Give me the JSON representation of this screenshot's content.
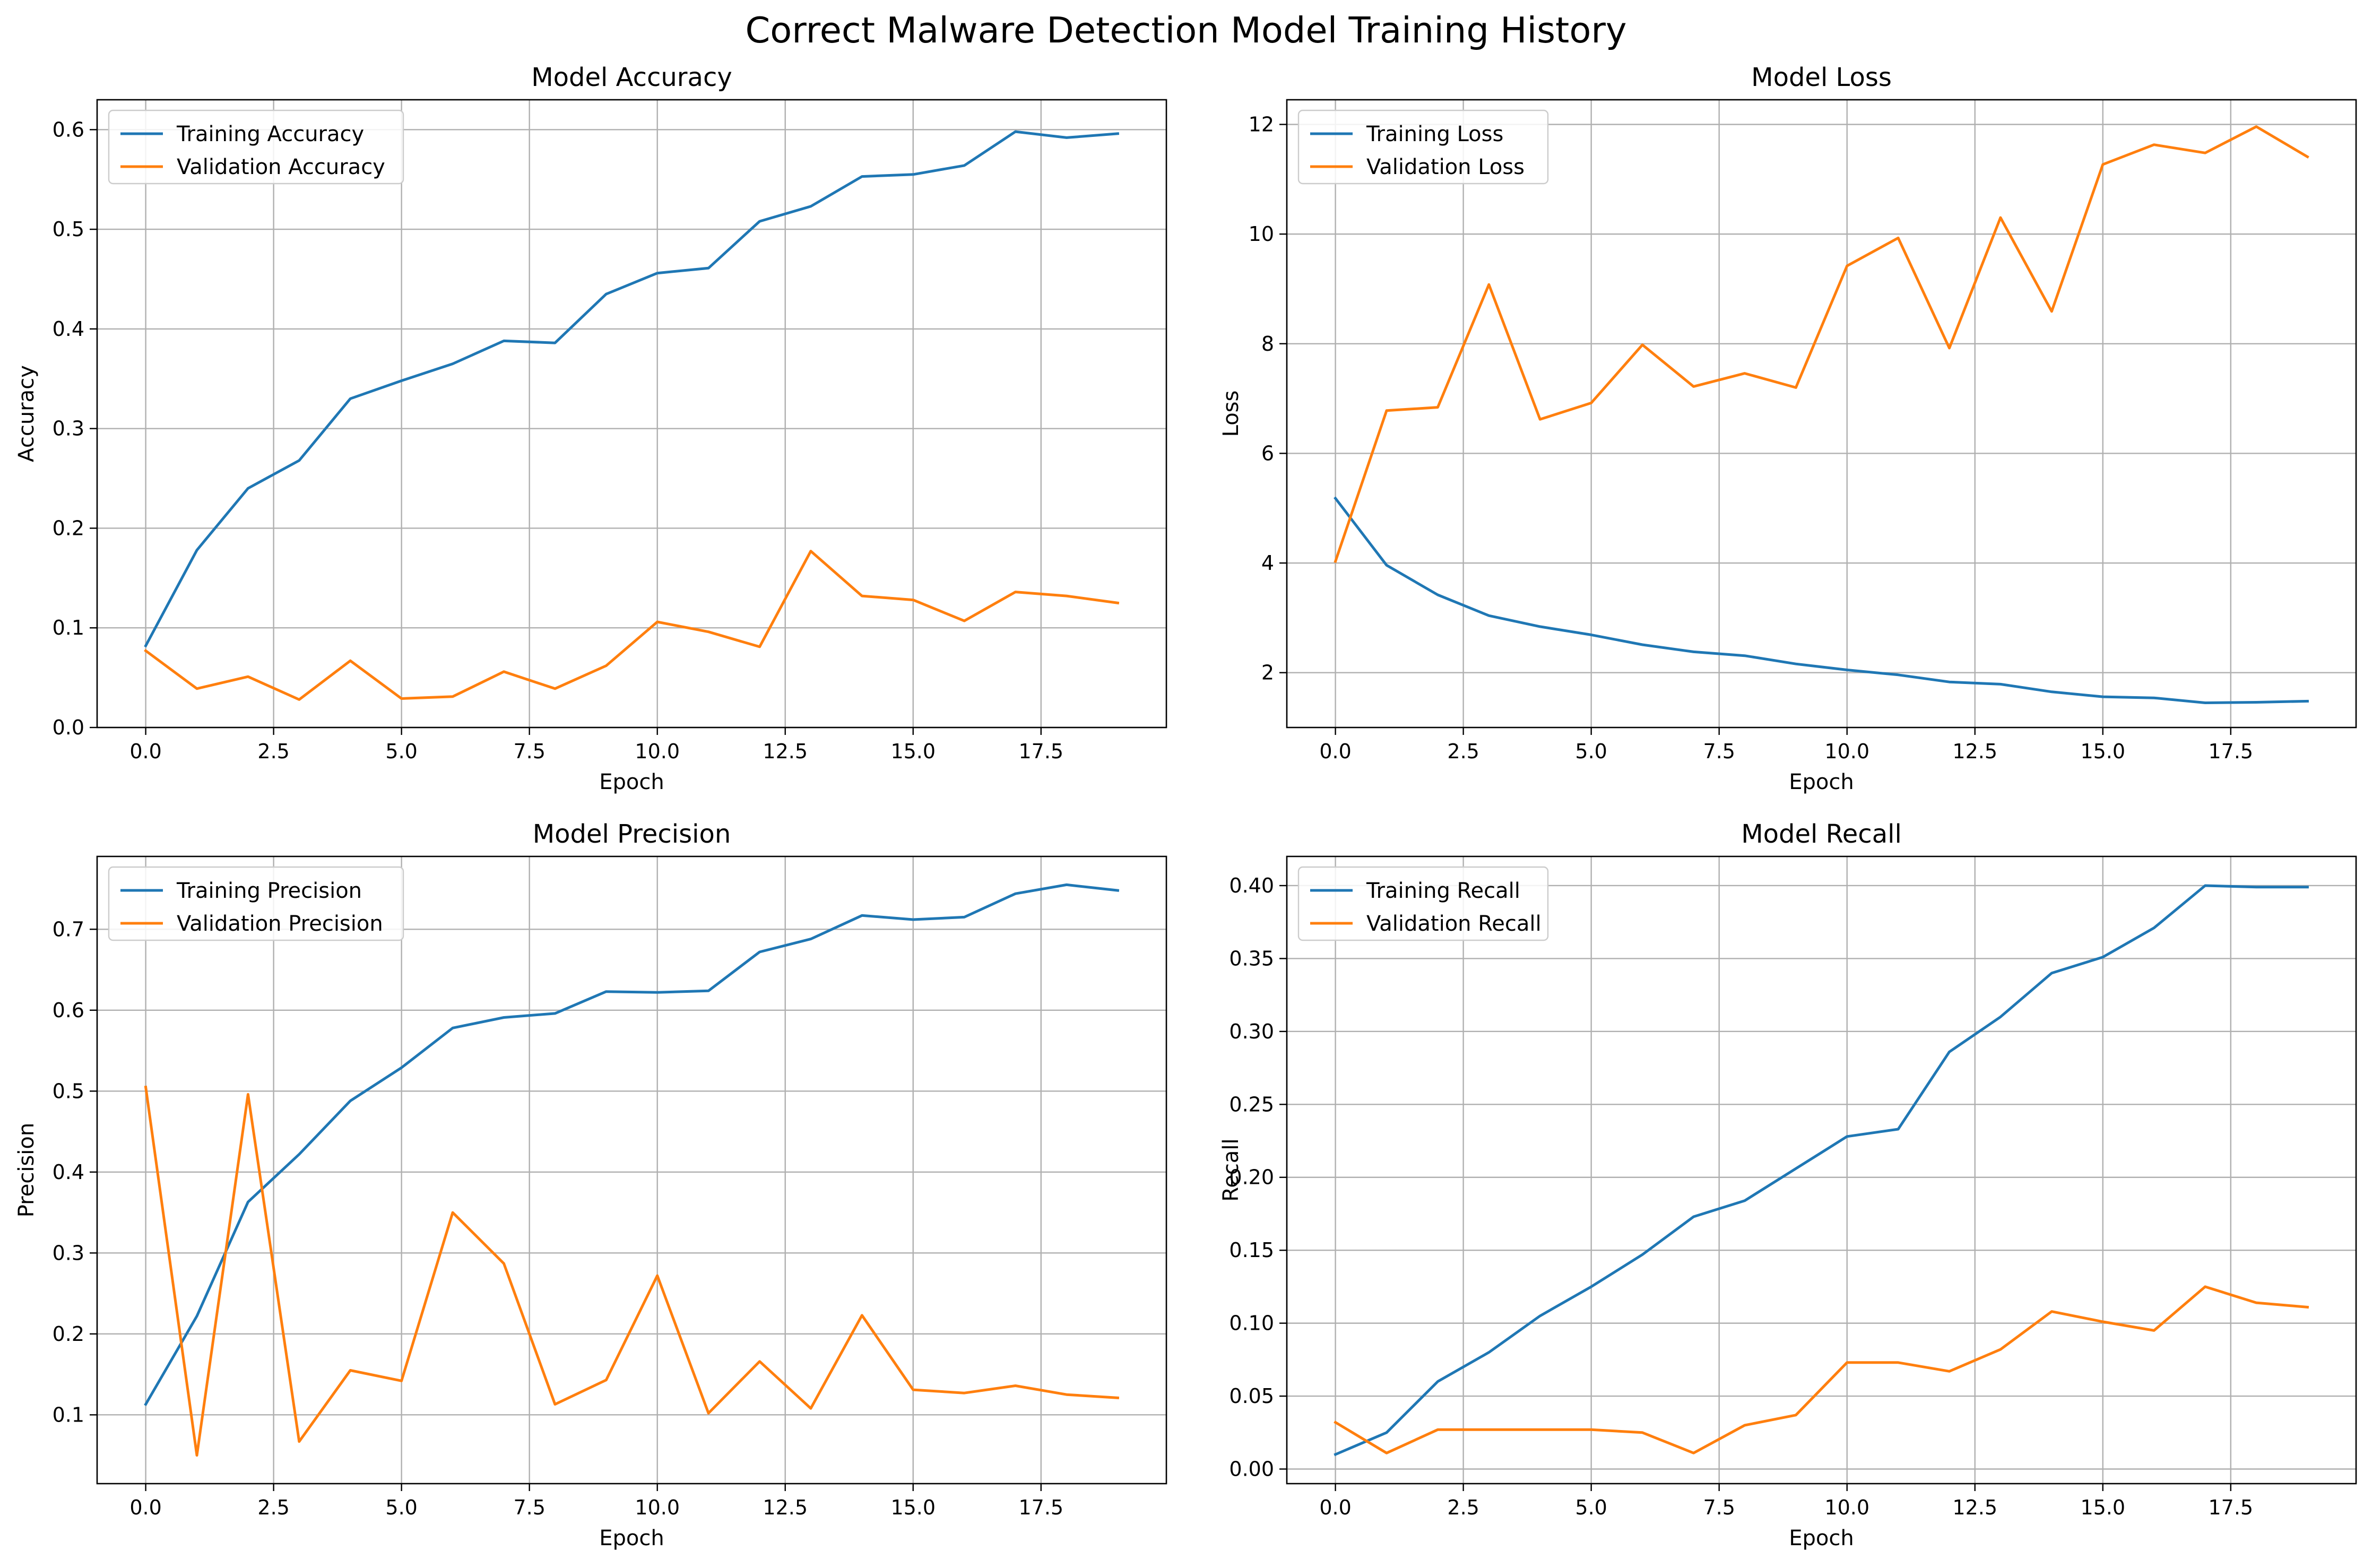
{
  "figure": {
    "title": "Correct Malware Detection Model Training History"
  },
  "colors": {
    "training": "#1f77b4",
    "validation": "#ff7f0e",
    "grid": "#b0b0b0",
    "axes": "#000000"
  },
  "chart_data": [
    {
      "type": "line",
      "title": "Model Accuracy",
      "xlabel": "Epoch",
      "ylabel": "Accuracy",
      "xlim": [
        -0.95,
        19.95
      ],
      "ylim": [
        0.0,
        0.63
      ],
      "xticks": [
        0,
        2.5,
        5,
        7.5,
        10,
        12.5,
        15,
        17.5
      ],
      "xtick_labels": [
        "0.0",
        "2.5",
        "5.0",
        "7.5",
        "10.0",
        "12.5",
        "15.0",
        "17.5"
      ],
      "yticks": [
        0.0,
        0.1,
        0.2,
        0.3,
        0.4,
        0.5,
        0.6
      ],
      "ytick_labels": [
        "0.0",
        "0.1",
        "0.2",
        "0.3",
        "0.4",
        "0.5",
        "0.6"
      ],
      "grid": true,
      "legend": "upper-left",
      "x": [
        0,
        1,
        2,
        3,
        4,
        5,
        6,
        7,
        8,
        9,
        10,
        11,
        12,
        13,
        14,
        15,
        16,
        17,
        18,
        19
      ],
      "series": [
        {
          "name": "Training Accuracy",
          "color": "#1f77b4",
          "values": [
            0.082,
            0.178,
            0.24,
            0.268,
            0.33,
            0.348,
            0.365,
            0.388,
            0.386,
            0.435,
            0.456,
            0.461,
            0.508,
            0.523,
            0.553,
            0.555,
            0.564,
            0.598,
            0.592,
            0.596
          ]
        },
        {
          "name": "Validation Accuracy",
          "color": "#ff7f0e",
          "values": [
            0.077,
            0.039,
            0.051,
            0.028,
            0.067,
            0.029,
            0.031,
            0.056,
            0.039,
            0.062,
            0.106,
            0.096,
            0.081,
            0.177,
            0.132,
            0.128,
            0.107,
            0.136,
            0.132,
            0.125
          ]
        }
      ]
    },
    {
      "type": "line",
      "title": "Model Loss",
      "xlabel": "Epoch",
      "ylabel": "Loss",
      "xlim": [
        -0.95,
        19.95
      ],
      "ylim": [
        1.0,
        12.45
      ],
      "xticks": [
        0,
        2.5,
        5,
        7.5,
        10,
        12.5,
        15,
        17.5
      ],
      "xtick_labels": [
        "0.0",
        "2.5",
        "5.0",
        "7.5",
        "10.0",
        "12.5",
        "15.0",
        "17.5"
      ],
      "yticks": [
        2,
        4,
        6,
        8,
        10,
        12
      ],
      "ytick_labels": [
        "2",
        "4",
        "6",
        "8",
        "10",
        "12"
      ],
      "grid": true,
      "legend": "upper-left",
      "x": [
        0,
        1,
        2,
        3,
        4,
        5,
        6,
        7,
        8,
        9,
        10,
        11,
        12,
        13,
        14,
        15,
        16,
        17,
        18,
        19
      ],
      "series": [
        {
          "name": "Training Loss",
          "color": "#1f77b4",
          "values": [
            5.18,
            3.96,
            3.42,
            3.04,
            2.84,
            2.69,
            2.51,
            2.38,
            2.31,
            2.16,
            2.05,
            1.96,
            1.83,
            1.79,
            1.65,
            1.56,
            1.54,
            1.45,
            1.46,
            1.48
          ]
        },
        {
          "name": "Validation Loss",
          "color": "#ff7f0e",
          "values": [
            4.03,
            6.78,
            6.84,
            9.08,
            6.62,
            6.92,
            7.98,
            7.22,
            7.46,
            7.2,
            9.42,
            9.93,
            7.92,
            10.3,
            8.59,
            11.27,
            11.63,
            11.48,
            11.96,
            11.41
          ]
        }
      ]
    },
    {
      "type": "line",
      "title": "Model Precision",
      "xlabel": "Epoch",
      "ylabel": "Precision",
      "xlim": [
        -0.95,
        19.95
      ],
      "ylim": [
        0.015,
        0.79
      ],
      "xticks": [
        0,
        2.5,
        5,
        7.5,
        10,
        12.5,
        15,
        17.5
      ],
      "xtick_labels": [
        "0.0",
        "2.5",
        "5.0",
        "7.5",
        "10.0",
        "12.5",
        "15.0",
        "17.5"
      ],
      "yticks": [
        0.1,
        0.2,
        0.3,
        0.4,
        0.5,
        0.6,
        0.7
      ],
      "ytick_labels": [
        "0.1",
        "0.2",
        "0.3",
        "0.4",
        "0.5",
        "0.6",
        "0.7"
      ],
      "grid": true,
      "legend": "upper-left",
      "x": [
        0,
        1,
        2,
        3,
        4,
        5,
        6,
        7,
        8,
        9,
        10,
        11,
        12,
        13,
        14,
        15,
        16,
        17,
        18,
        19
      ],
      "series": [
        {
          "name": "Training Precision",
          "color": "#1f77b4",
          "values": [
            0.113,
            0.222,
            0.363,
            0.422,
            0.488,
            0.529,
            0.578,
            0.591,
            0.596,
            0.623,
            0.622,
            0.624,
            0.672,
            0.688,
            0.717,
            0.712,
            0.715,
            0.744,
            0.755,
            0.748
          ]
        },
        {
          "name": "Validation Precision",
          "color": "#ff7f0e",
          "values": [
            0.505,
            0.05,
            0.496,
            0.067,
            0.155,
            0.142,
            0.35,
            0.287,
            0.113,
            0.143,
            0.272,
            0.102,
            0.166,
            0.108,
            0.223,
            0.131,
            0.127,
            0.136,
            0.125,
            0.121
          ]
        }
      ]
    },
    {
      "type": "line",
      "title": "Model Recall",
      "xlabel": "Epoch",
      "ylabel": "Recall",
      "xlim": [
        -0.95,
        19.95
      ],
      "ylim": [
        -0.01,
        0.42
      ],
      "xticks": [
        0,
        2.5,
        5,
        7.5,
        10,
        12.5,
        15,
        17.5
      ],
      "xtick_labels": [
        "0.0",
        "2.5",
        "5.0",
        "7.5",
        "10.0",
        "12.5",
        "15.0",
        "17.5"
      ],
      "yticks": [
        0.0,
        0.05,
        0.1,
        0.15,
        0.2,
        0.25,
        0.3,
        0.35,
        0.4
      ],
      "ytick_labels": [
        "0.00",
        "0.05",
        "0.10",
        "0.15",
        "0.20",
        "0.25",
        "0.30",
        "0.35",
        "0.40"
      ],
      "grid": true,
      "legend": "upper-left",
      "x": [
        0,
        1,
        2,
        3,
        4,
        5,
        6,
        7,
        8,
        9,
        10,
        11,
        12,
        13,
        14,
        15,
        16,
        17,
        18,
        19
      ],
      "series": [
        {
          "name": "Training Recall",
          "color": "#1f77b4",
          "values": [
            0.01,
            0.025,
            0.06,
            0.08,
            0.105,
            0.125,
            0.147,
            0.173,
            0.184,
            0.206,
            0.228,
            0.233,
            0.286,
            0.31,
            0.34,
            0.351,
            0.371,
            0.4,
            0.399,
            0.399
          ]
        },
        {
          "name": "Validation Recall",
          "color": "#ff7f0e",
          "values": [
            0.032,
            0.011,
            0.027,
            0.027,
            0.027,
            0.027,
            0.025,
            0.011,
            0.03,
            0.037,
            0.073,
            0.073,
            0.067,
            0.082,
            0.108,
            0.101,
            0.095,
            0.125,
            0.114,
            0.111
          ]
        }
      ]
    }
  ]
}
